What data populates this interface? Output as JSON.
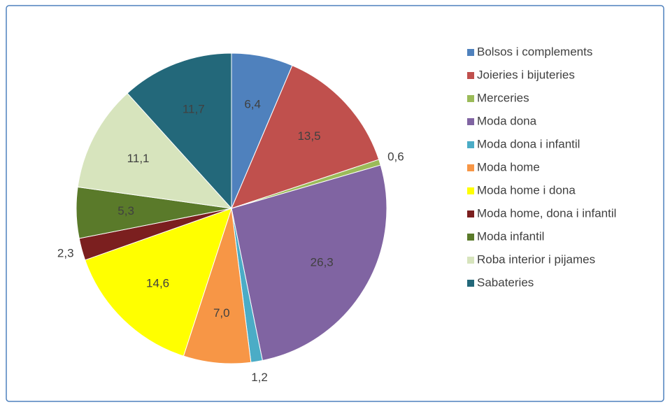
{
  "chart_data": {
    "type": "pie",
    "categories": [
      "Bolsos i complements",
      "Joieries i bijuteries",
      "Merceries",
      "Moda dona",
      "Moda dona i infantil",
      "Moda home",
      "Moda home i dona",
      "Moda home, dona i infantil",
      "Moda infantil",
      "Roba interior i pijames",
      "Sabateries"
    ],
    "values": [
      6.4,
      13.5,
      0.6,
      26.3,
      1.2,
      7.0,
      14.6,
      2.3,
      5.3,
      11.1,
      11.7
    ],
    "value_labels": [
      "6,4",
      "13,5",
      "0,6",
      "26,3",
      "1,2",
      "7,0",
      "14,6",
      "2,3",
      "5,3",
      "11,1",
      "11,7"
    ],
    "colors": [
      "#4f81bd",
      "#c0504d",
      "#9bbb59",
      "#8064a2",
      "#4bacc6",
      "#f79646",
      "#ffff00",
      "#7b1f1f",
      "#5a7a2a",
      "#d7e4bd",
      "#23687a"
    ],
    "legend": "right"
  }
}
